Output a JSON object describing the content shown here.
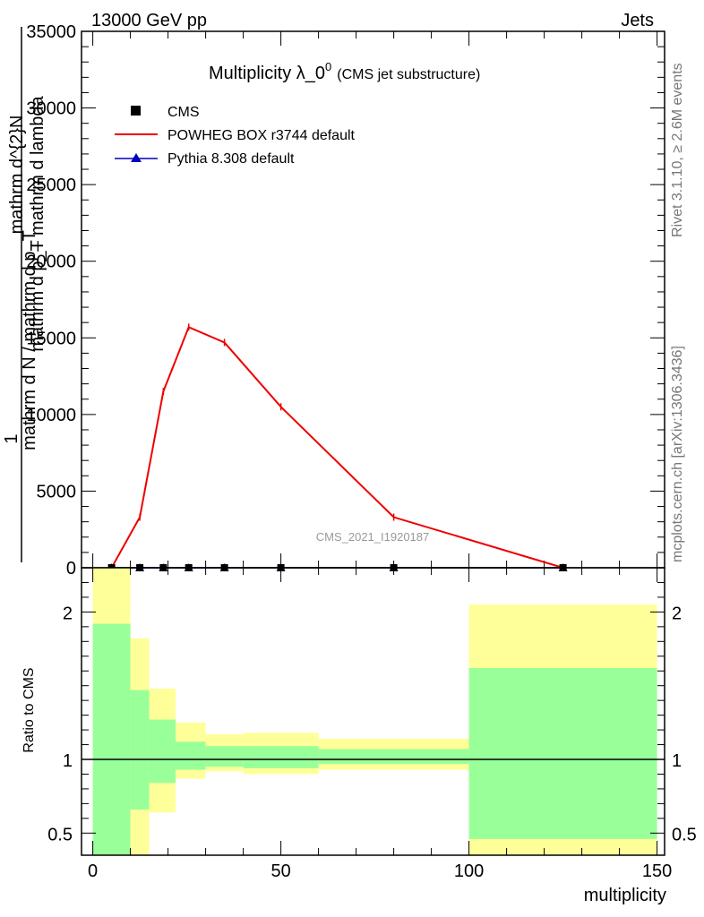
{
  "header": {
    "left": "13000 GeV pp",
    "right": "Jets"
  },
  "side_labels": {
    "rivet": "Rivet 3.1.10, ≥ 2.6M events",
    "mcplots": "mcplots.cern.ch [arXiv:1306.3436]"
  },
  "chart_data": [
    {
      "type": "line",
      "title": "Multiplicity λ_0",
      "title_sup": "0",
      "subtitle": "(CMS jet substructure)",
      "watermark": "CMS_2021_I1920187",
      "ylabel_numerator": "1",
      "ylabel_top": "mathrm d^{2}N",
      "ylabel_left": "mathrm d N / mathrm d p_T",
      "ylabel_bottom": "mathrm d p_T mathrm d lambda",
      "xlim": [
        -3,
        152
      ],
      "ylim": [
        0,
        35000
      ],
      "yticks": [
        0,
        5000,
        10000,
        15000,
        20000,
        25000,
        30000,
        35000
      ],
      "ytick_labels": [
        "0",
        "5000",
        "10000",
        "15000",
        "20000",
        "25000",
        "30000",
        "35000"
      ],
      "legend_placement": "top-left",
      "series": [
        {
          "name": "CMS",
          "marker": "square",
          "color": "#000000",
          "x": [
            5,
            12.5,
            18.75,
            25.5,
            35,
            50,
            80,
            125
          ],
          "y": [
            0,
            0,
            0,
            0,
            0,
            0,
            0,
            0
          ]
        },
        {
          "name": "POWHEG BOX r3744 default",
          "marker": "line",
          "color": "#ee0000",
          "x": [
            5,
            12.5,
            18.75,
            25.5,
            35,
            50,
            80,
            125
          ],
          "y": [
            0,
            3300,
            11500,
            15700,
            14700,
            10500,
            3300,
            0
          ]
        },
        {
          "name": "Pythia 8.308 default",
          "marker": "triangle",
          "color": "#0000bb",
          "x": [
            5,
            12.5,
            18.75,
            25.5,
            35,
            50,
            80,
            125
          ],
          "y": [
            0,
            0,
            0,
            0,
            0,
            0,
            0,
            0
          ]
        }
      ]
    },
    {
      "type": "area",
      "ylabel": "Ratio to CMS",
      "xlabel": "multiplicity",
      "xlim": [
        -3,
        152
      ],
      "ylim": [
        0.35,
        2.3
      ],
      "xticks": [
        0,
        50,
        100,
        150
      ],
      "xtick_labels": [
        "0",
        "50",
        "100",
        "150"
      ],
      "yticks": [
        0.5,
        1,
        2
      ],
      "ytick_labels": [
        "0.5",
        "1",
        "2"
      ],
      "bands_colors": {
        "inner": "#99ff99",
        "outer": "#ffff99"
      },
      "bins": [
        {
          "lo": 0,
          "hi": 10,
          "inner": [
            0.35,
            1.92
          ],
          "outer": [
            0.35,
            2.3
          ]
        },
        {
          "lo": 10,
          "hi": 15,
          "inner": [
            0.66,
            1.47
          ],
          "outer": [
            0.35,
            1.82
          ]
        },
        {
          "lo": 15,
          "hi": 22,
          "inner": [
            0.84,
            1.27
          ],
          "outer": [
            0.64,
            1.48
          ]
        },
        {
          "lo": 22,
          "hi": 30,
          "inner": [
            0.93,
            1.12
          ],
          "outer": [
            0.87,
            1.25
          ]
        },
        {
          "lo": 30,
          "hi": 40,
          "inner": [
            0.95,
            1.09
          ],
          "outer": [
            0.92,
            1.17
          ]
        },
        {
          "lo": 40,
          "hi": 60,
          "inner": [
            0.94,
            1.09
          ],
          "outer": [
            0.9,
            1.18
          ]
        },
        {
          "lo": 60,
          "hi": 100,
          "inner": [
            0.97,
            1.07
          ],
          "outer": [
            0.93,
            1.14
          ]
        },
        {
          "lo": 100,
          "hi": 150,
          "inner": [
            0.46,
            1.62
          ],
          "outer": [
            0.35,
            2.05
          ]
        }
      ],
      "reference_line": 1
    }
  ]
}
